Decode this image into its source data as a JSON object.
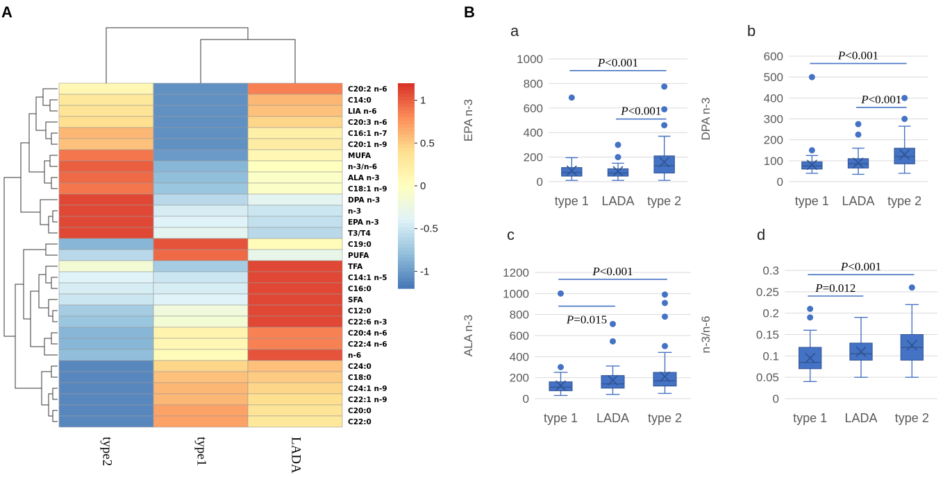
{
  "panel_labels": {
    "A": "A",
    "B": "B"
  },
  "colors": {
    "box_fill": "#4472c4",
    "box_stroke": "#2f528f",
    "sig_line": "#4472c4",
    "grid": "#d9d9d9",
    "scale": [
      "#4575b4",
      "#91bfdb",
      "#e0f3f8",
      "#ffffbf",
      "#fee090",
      "#fc8d59",
      "#d73027"
    ]
  },
  "chart_data": [
    {
      "type": "heatmap",
      "columns": [
        "type2",
        "type1",
        "LADA"
      ],
      "rows": [
        {
          "label": "C20:2 n-6",
          "values": [
            0.1,
            -1.05,
            0.85
          ]
        },
        {
          "label": "C14:0",
          "values": [
            0.3,
            -1.05,
            0.6
          ]
        },
        {
          "label": "LIA n-6",
          "values": [
            0.35,
            -1.05,
            0.55
          ]
        },
        {
          "label": "C20:3 n-6",
          "values": [
            0.4,
            -1.05,
            0.45
          ]
        },
        {
          "label": "C16:1 n-7",
          "values": [
            0.6,
            -1.05,
            0.2
          ]
        },
        {
          "label": "C20:1 n-9",
          "values": [
            0.55,
            -1.05,
            0.25
          ]
        },
        {
          "label": "MUFA",
          "values": [
            0.9,
            -1.0,
            0.1
          ]
        },
        {
          "label": "n-3/n-6",
          "values": [
            1.0,
            -0.85,
            0.0
          ]
        },
        {
          "label": "ALA n-3",
          "values": [
            0.95,
            -0.8,
            -0.05
          ]
        },
        {
          "label": "C18:1 n-9",
          "values": [
            0.9,
            -0.75,
            -0.05
          ]
        },
        {
          "label": "DPA n-3",
          "values": [
            1.1,
            -0.6,
            -0.35
          ]
        },
        {
          "label": "n-3",
          "values": [
            1.1,
            -0.45,
            -0.5
          ]
        },
        {
          "label": "EPA n-3",
          "values": [
            1.1,
            -0.4,
            -0.55
          ]
        },
        {
          "label": "T3/T4",
          "values": [
            1.1,
            -0.35,
            -0.6
          ]
        },
        {
          "label": "C19:0",
          "values": [
            -0.85,
            1.05,
            0.05
          ]
        },
        {
          "label": "PUFA",
          "values": [
            -0.6,
            0.95,
            -0.3
          ]
        },
        {
          "label": "TFA",
          "values": [
            -0.15,
            -0.7,
            1.1
          ]
        },
        {
          "label": "C14:1 n-5",
          "values": [
            -0.4,
            -0.5,
            1.1
          ]
        },
        {
          "label": "C16:0",
          "values": [
            -0.45,
            -0.45,
            1.1
          ]
        },
        {
          "label": "SFA",
          "values": [
            -0.5,
            -0.4,
            1.1
          ]
        },
        {
          "label": "C12:0",
          "values": [
            -0.7,
            -0.2,
            1.1
          ]
        },
        {
          "label": "C22:6 n-3",
          "values": [
            -0.75,
            -0.15,
            1.1
          ]
        },
        {
          "label": "C20:4 n-6",
          "values": [
            -0.85,
            0.15,
            0.85
          ]
        },
        {
          "label": "C22:4 n-6",
          "values": [
            -0.85,
            0.1,
            0.85
          ]
        },
        {
          "label": "n-6",
          "values": [
            -0.8,
            0.05,
            1.05
          ]
        },
        {
          "label": "C24:0",
          "values": [
            -1.1,
            0.45,
            0.55
          ]
        },
        {
          "label": "C18:0",
          "values": [
            -1.1,
            0.55,
            0.5
          ]
        },
        {
          "label": "C24:1 n-9",
          "values": [
            -1.1,
            0.6,
            0.45
          ]
        },
        {
          "label": "C22:1 n-9",
          "values": [
            -1.1,
            0.6,
            0.4
          ]
        },
        {
          "label": "C20:0",
          "values": [
            -1.1,
            0.7,
            0.35
          ]
        },
        {
          "label": "C22:0",
          "values": [
            -1.1,
            0.7,
            0.3
          ]
        }
      ],
      "colorbar": {
        "ticks": [
          1,
          0.5,
          0,
          -0.5,
          -1
        ],
        "tick_labels": [
          "1",
          "0.5",
          "0",
          "-0.5",
          "-1"
        ],
        "range": [
          -1.2,
          1.2
        ]
      }
    },
    {
      "type": "box",
      "panel": "a",
      "ylabel": "EPA n-3",
      "categories": [
        "type 1",
        "LADA",
        "type 2"
      ],
      "ylim": [
        0,
        1000
      ],
      "yticks": [
        0,
        200,
        400,
        600,
        800,
        1000
      ],
      "boxes": [
        {
          "min": 10,
          "q1": 45,
          "median": 75,
          "q3": 115,
          "max": 195,
          "mean": 90,
          "outliers": [
            685
          ]
        },
        {
          "min": 10,
          "q1": 45,
          "median": 70,
          "q3": 105,
          "max": 150,
          "mean": 85,
          "outliers": [
            200,
            300
          ]
        },
        {
          "min": 10,
          "q1": 70,
          "median": 130,
          "q3": 210,
          "max": 370,
          "mean": 160,
          "outliers": [
            460,
            590,
            775
          ]
        }
      ],
      "significance": [
        {
          "from": 0,
          "to": 2,
          "y": 905,
          "text_italic": "P",
          "text": "<0.001"
        },
        {
          "from": 1,
          "to": 2,
          "y": 510,
          "text_italic": "P",
          "text": "<0.001"
        }
      ]
    },
    {
      "type": "box",
      "panel": "b",
      "ylabel": "DPA n-3",
      "categories": [
        "type 1",
        "LADA",
        "type 2"
      ],
      "ylim": [
        0,
        600
      ],
      "yticks": [
        0,
        100,
        200,
        300,
        400,
        500,
        600
      ],
      "boxes": [
        {
          "min": 40,
          "q1": 60,
          "median": 75,
          "q3": 95,
          "max": 125,
          "mean": 80,
          "outliers": [
            150,
            500
          ]
        },
        {
          "min": 35,
          "q1": 65,
          "median": 85,
          "q3": 110,
          "max": 160,
          "mean": 90,
          "outliers": [
            225,
            275
          ]
        },
        {
          "min": 40,
          "q1": 85,
          "median": 120,
          "q3": 160,
          "max": 265,
          "mean": 130,
          "outliers": [
            300,
            400
          ]
        }
      ],
      "significance": [
        {
          "from": 0,
          "to": 2,
          "y": 565,
          "text_italic": "P",
          "text": "<0.001"
        },
        {
          "from": 1,
          "to": 2,
          "y": 355,
          "text_italic": "P",
          "text": "<0.001"
        }
      ]
    },
    {
      "type": "box",
      "panel": "c",
      "ylabel": "ALA n-3",
      "categories": [
        "type 1",
        "LADA",
        "type 2"
      ],
      "ylim": [
        0,
        1200
      ],
      "yticks": [
        0,
        200,
        400,
        600,
        800,
        1000,
        1200
      ],
      "boxes": [
        {
          "min": 30,
          "q1": 75,
          "median": 110,
          "q3": 160,
          "max": 250,
          "mean": 125,
          "outliers": [
            300,
            1000
          ]
        },
        {
          "min": 40,
          "q1": 100,
          "median": 140,
          "q3": 220,
          "max": 310,
          "mean": 175,
          "outliers": [
            545,
            710
          ]
        },
        {
          "min": 50,
          "q1": 120,
          "median": 170,
          "q3": 250,
          "max": 440,
          "mean": 210,
          "outliers": [
            500,
            780,
            910,
            990
          ]
        }
      ],
      "significance": [
        {
          "from": 0,
          "to": 2,
          "y": 1135,
          "text_italic": "P",
          "text": "<0.001"
        },
        {
          "from": 0,
          "to": 1,
          "y": 880,
          "text_italic": "P",
          "text": "=0.015"
        }
      ]
    },
    {
      "type": "box",
      "panel": "d",
      "ylabel": "n-3/n-6",
      "categories": [
        "type 1",
        "LADA",
        "type 2"
      ],
      "ylim": [
        0,
        0.3
      ],
      "yticks": [
        0,
        0.05,
        0.1,
        0.15,
        0.2,
        0.25,
        0.3
      ],
      "ytick_labels": [
        "0",
        "0.05",
        "0.1",
        "0.15",
        "0.2",
        "0.25",
        "0.3"
      ],
      "boxes": [
        {
          "min": 0.04,
          "q1": 0.07,
          "median": 0.085,
          "q3": 0.12,
          "max": 0.16,
          "mean": 0.095,
          "outliers": [
            0.19,
            0.21
          ]
        },
        {
          "min": 0.05,
          "q1": 0.09,
          "median": 0.105,
          "q3": 0.13,
          "max": 0.19,
          "mean": 0.11,
          "outliers": []
        },
        {
          "min": 0.05,
          "q1": 0.09,
          "median": 0.12,
          "q3": 0.15,
          "max": 0.22,
          "mean": 0.125,
          "outliers": [
            0.26
          ]
        }
      ],
      "significance": [
        {
          "from": 0,
          "to": 2,
          "y": 0.29,
          "text_italic": "P",
          "text": "<0.001"
        },
        {
          "from": 0,
          "to": 1,
          "y": 0.24,
          "text_italic": "P",
          "text": "=0.012"
        }
      ]
    }
  ]
}
